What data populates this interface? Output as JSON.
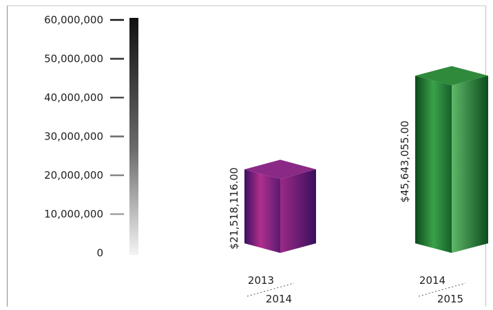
{
  "chart_data": {
    "type": "bar",
    "title": "",
    "xlabel": "",
    "ylabel": "",
    "ylim": [
      0,
      60000000
    ],
    "y_ticks": [
      "60,000,000",
      "50,000,000",
      "40,000,000",
      "30,000,000",
      "20,000,000",
      "10,000,000",
      "0"
    ],
    "categories": [
      {
        "line1": "2013",
        "line2": "2014"
      },
      {
        "line1": "2014",
        "line2": "2015"
      }
    ],
    "series": [
      {
        "values": [
          21518116.0,
          45643055.0
        ],
        "labels": [
          "$21,518,116.00",
          "$45,643,055.00"
        ],
        "colors": [
          "#8c2a88",
          "#1f8a2e"
        ]
      }
    ],
    "legend": "none",
    "grid": false
  }
}
